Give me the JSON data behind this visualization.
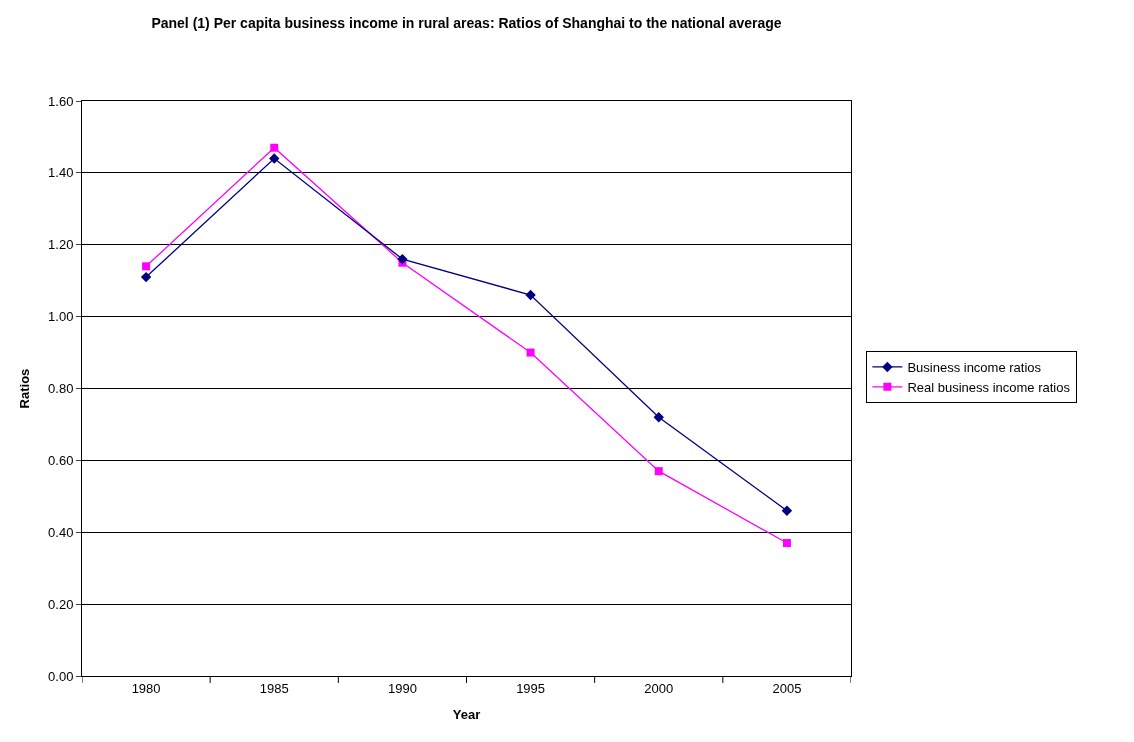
{
  "chart_data": {
    "type": "line",
    "title": "Panel (1) Per capita business income in rural areas: Ratios of Shanghai to the national average",
    "xlabel": "Year",
    "ylabel": "Ratios",
    "categories": [
      "1980",
      "1985",
      "1990",
      "1995",
      "2000",
      "2005"
    ],
    "series": [
      {
        "name": "Business income ratios",
        "color": "#000080",
        "marker": "diamond",
        "values": [
          1.11,
          1.44,
          1.16,
          1.06,
          0.72,
          0.46
        ]
      },
      {
        "name": "Real business income ratios",
        "color": "#ff00ff",
        "marker": "square",
        "values": [
          1.14,
          1.47,
          1.15,
          0.9,
          0.57,
          0.37
        ]
      }
    ],
    "ylim": [
      0,
      1.6
    ],
    "yticks": [
      {
        "value": 0,
        "label": "0.00"
      },
      {
        "value": 0.2,
        "label": "0.20"
      },
      {
        "value": 0.4,
        "label": "0.40"
      },
      {
        "value": 0.6,
        "label": "0.60"
      },
      {
        "value": 0.8,
        "label": "0.80"
      },
      {
        "value": 1.0,
        "label": "1.00"
      },
      {
        "value": 1.2,
        "label": "1.20"
      },
      {
        "value": 1.4,
        "label": "1.40"
      },
      {
        "value": 1.6,
        "label": "1.60"
      }
    ],
    "grid": "y",
    "legend": "right",
    "line_style": "solid"
  }
}
